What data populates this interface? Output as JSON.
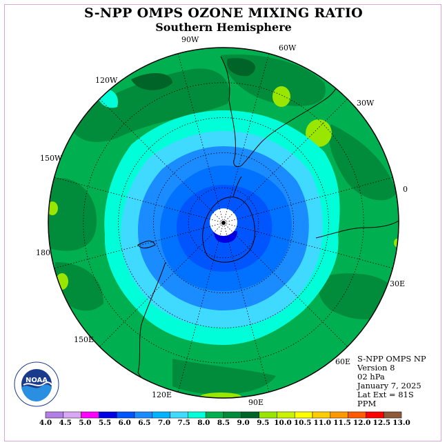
{
  "header": {
    "title": "S-NPP OMPS OZONE MIXING RATIO",
    "subtitle": "Southern Hemisphere"
  },
  "map_labels": [
    {
      "text": "90W",
      "name": "lon-label-90w"
    },
    {
      "text": "60W",
      "name": "lon-label-60w"
    },
    {
      "text": "30W",
      "name": "lon-label-30w"
    },
    {
      "text": "0",
      "name": "lon-label-0"
    },
    {
      "text": "30E",
      "name": "lon-label-30e"
    },
    {
      "text": "60E",
      "name": "lon-label-60e"
    },
    {
      "text": "90E",
      "name": "lon-label-90e"
    },
    {
      "text": "120E",
      "name": "lon-label-120e"
    },
    {
      "text": "150E",
      "name": "lon-label-150e"
    },
    {
      "text": "180",
      "name": "lon-label-180"
    },
    {
      "text": "150W",
      "name": "lon-label-150w"
    },
    {
      "text": "120W",
      "name": "lon-label-120w"
    }
  ],
  "info": {
    "instrument": "S-NPP OMPS NP",
    "version": "Version 8",
    "level": "02 hPa",
    "date": "January 7, 2025",
    "lat_ext": "Lat Ext = 81S",
    "units": "PPM"
  },
  "logo": {
    "text": "NOAA"
  },
  "colorbar": {
    "labels": [
      "4.0",
      "4.5",
      "5.0",
      "5.5",
      "6.0",
      "6.5",
      "7.0",
      "7.5",
      "8.0",
      "8.5",
      "9.0",
      "9.5",
      "10.0",
      "10.5",
      "11.0",
      "11.5",
      "12.0",
      "12.5",
      "13.0"
    ],
    "colors": [
      "#b27fe6",
      "#d8a6f2",
      "#ff00ff",
      "#0000e6",
      "#0055ff",
      "#1a8cff",
      "#00b2ff",
      "#40d9ff",
      "#00ffd9",
      "#00b050",
      "#008c3a",
      "#006428",
      "#99e600",
      "#c8f200",
      "#ffff00",
      "#ffcc00",
      "#ff9900",
      "#ff5a00",
      "#ff0000",
      "#8c5a3a"
    ]
  },
  "colors": {
    "ocean_dark": "#006428",
    "ocean_mid": "#008c3a",
    "band_cyan": "#00ffd9",
    "band_light_blue": "#40d9ff",
    "band_blue": "#1a8cff",
    "band_deep_blue": "#0055ff",
    "polar_hole": "#ffffff"
  }
}
